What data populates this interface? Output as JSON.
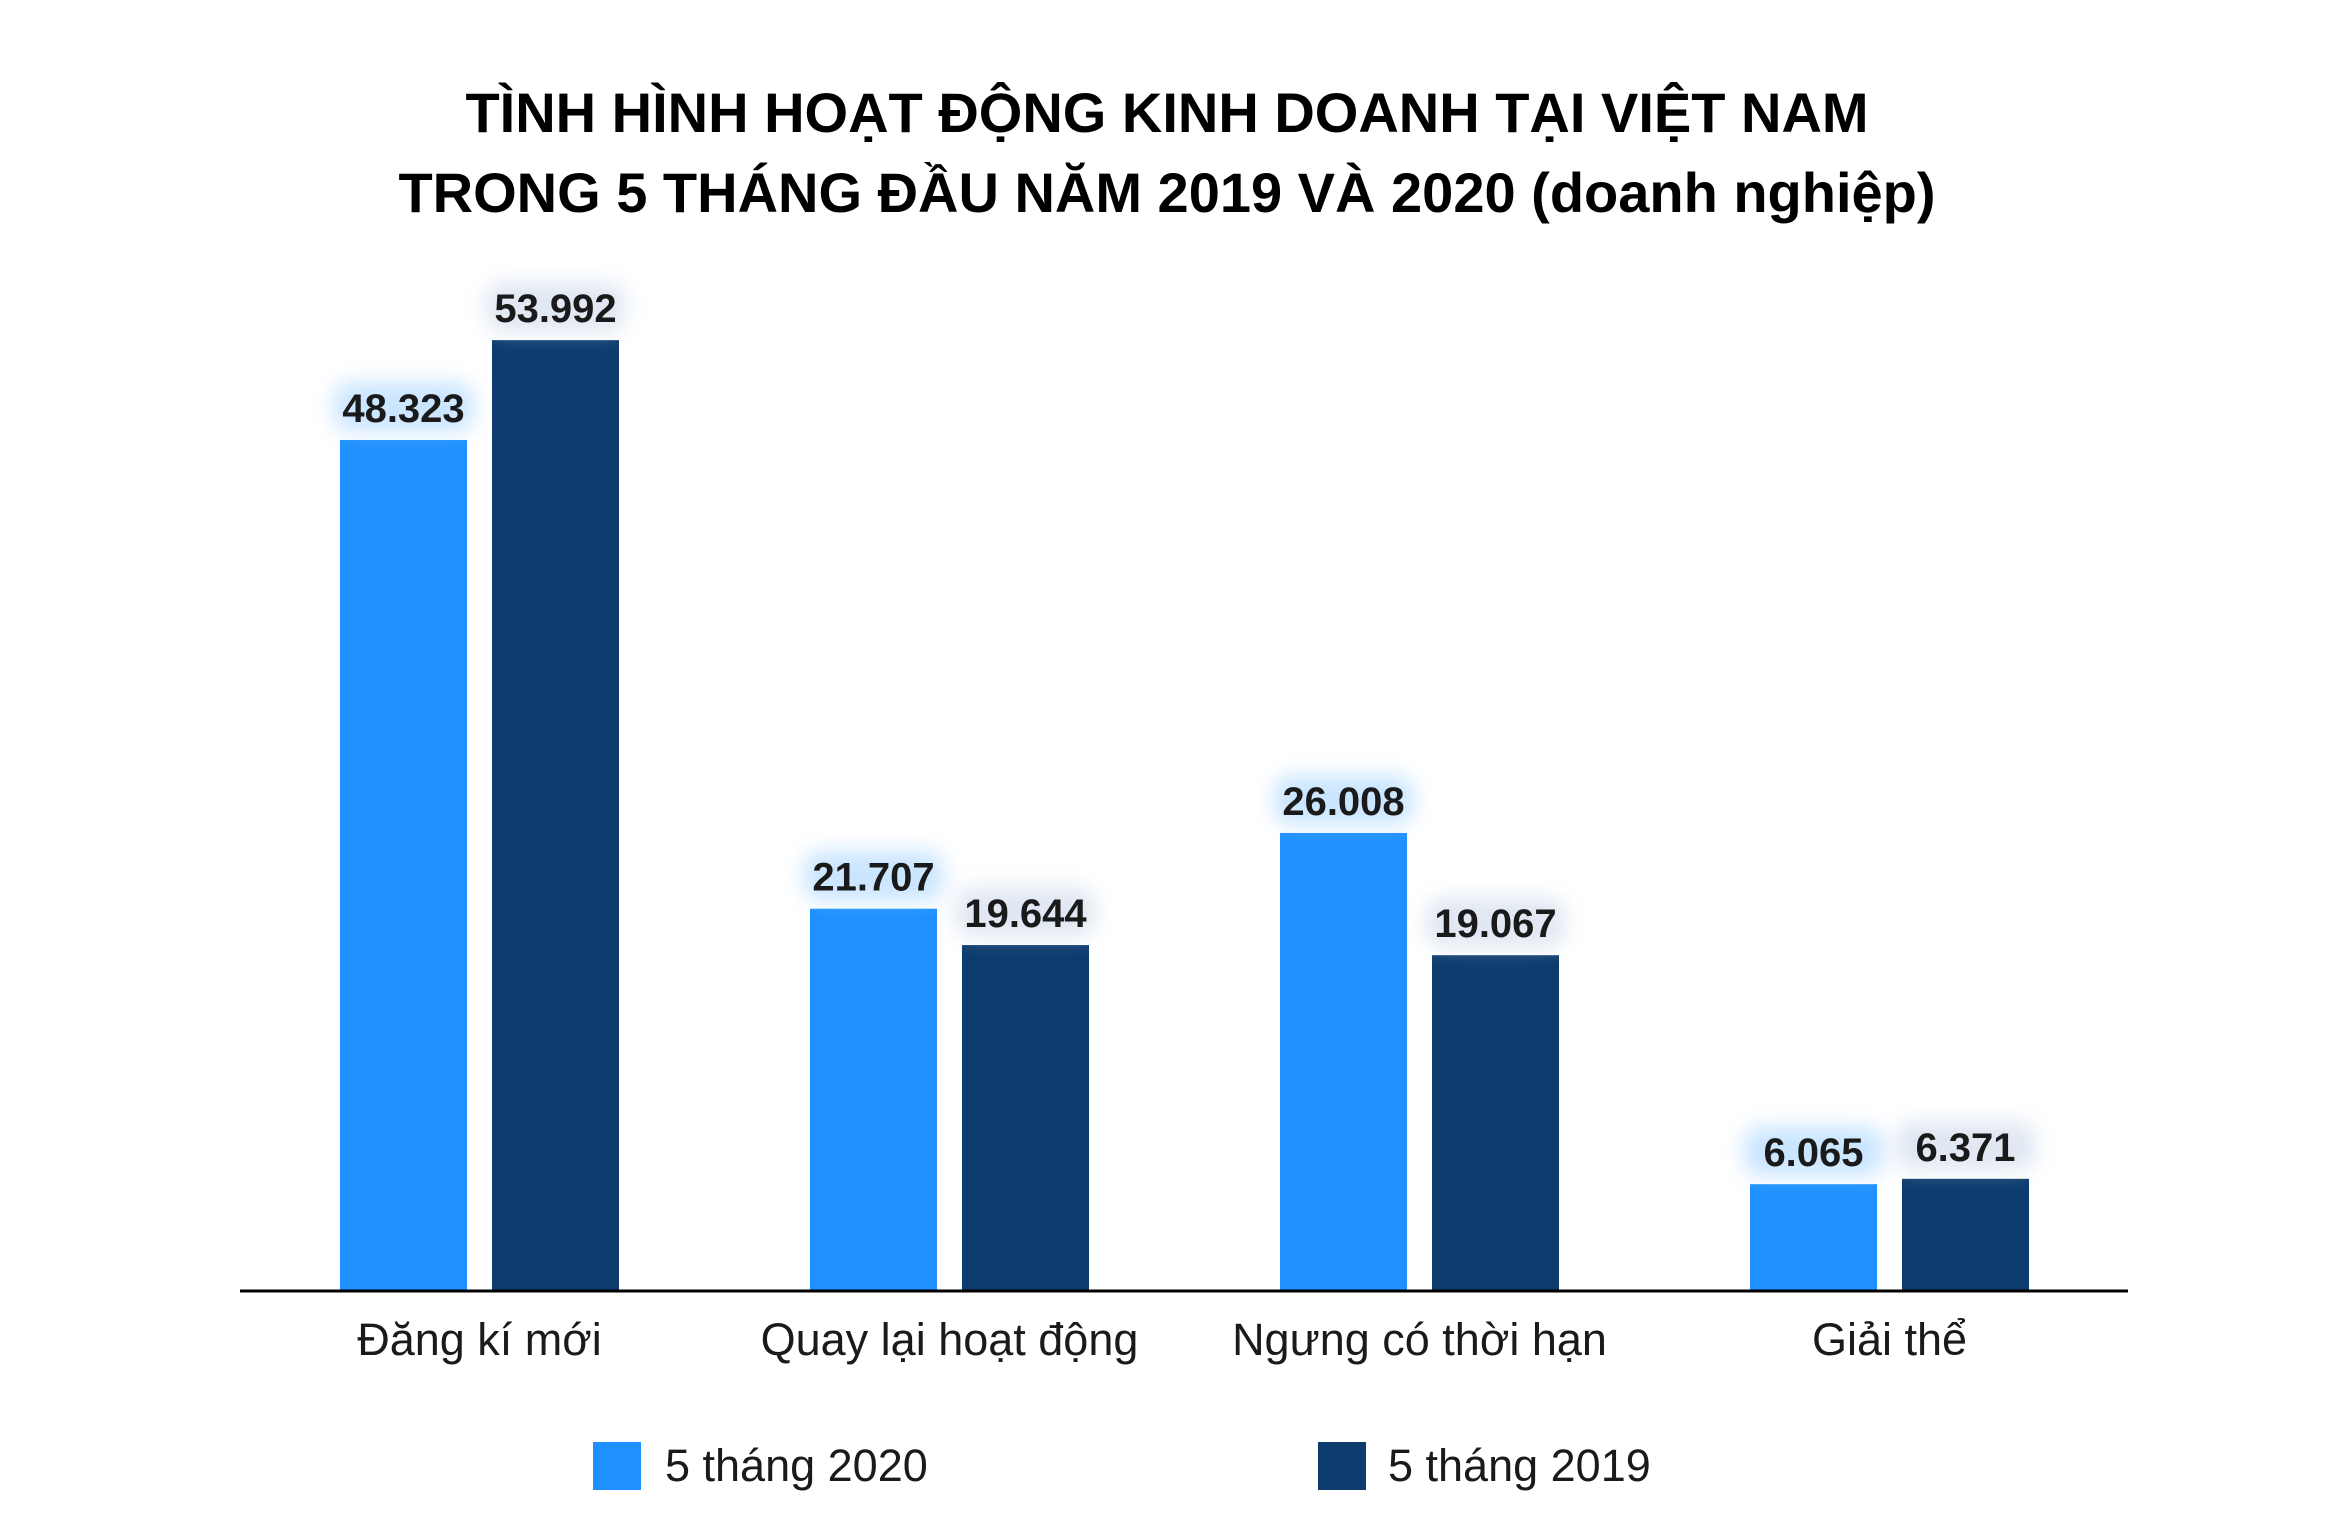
{
  "chart_data": {
    "type": "bar",
    "title": "TÌNH HÌNH HOẠT ĐỘNG KINH DOANH TẠI VIỆT NAM",
    "subtitle": "TRONG 5 THÁNG ĐẦU NĂM 2019 VÀ 2020 (doanh nghiệp)",
    "categories": [
      "Đăng kí mới",
      "Quay lại hoạt động",
      "Ngưng có thời hạn",
      "Giải thể"
    ],
    "series": [
      {
        "name": "5 tháng 2020",
        "color": "#1e90ff",
        "values": [
          48323,
          21707,
          26008,
          6065
        ],
        "labels": [
          "48.323",
          "21.707",
          "26.008",
          "6.065"
        ]
      },
      {
        "name": "5 tháng 2019",
        "color": "#0d3b6e",
        "values": [
          53992,
          19644,
          19067,
          6371
        ],
        "labels": [
          "53.992",
          "19.644",
          "19.067",
          "6.371"
        ]
      }
    ],
    "ylim": [
      0,
      54000
    ],
    "grid": false,
    "legend_position": "bottom",
    "xlabel": "",
    "ylabel": ""
  }
}
